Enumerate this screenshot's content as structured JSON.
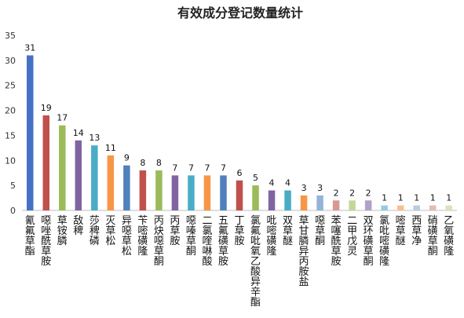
{
  "chart_data": {
    "type": "bar",
    "title": "有效成分登记数量统计",
    "xlabel": "",
    "ylabel": "",
    "ylim": [
      0,
      35
    ],
    "yticks": [
      0,
      5,
      10,
      15,
      20,
      25,
      30,
      35
    ],
    "grid": false,
    "legend": "none",
    "categories": [
      "氰氟草酯",
      "噁唑酰草胺",
      "草铵膦",
      "敌稗",
      "莎稗磷",
      "灭草松",
      "异噁草松",
      "苄嘧磺隆",
      "丙炔噁草酮",
      "丙草胺",
      "噁嗪草酮",
      "二氯喹啉酸",
      "五氟磺草胺",
      "丁草胺",
      "氯氟吡氧乙酸异辛酯",
      "吡嘧磺隆",
      "双草醚",
      "草甘膦异丙胺盐",
      "噁草酮",
      "苯噻酰草胺",
      "二甲戊灵",
      "双环磺草酮",
      "氯吡嘧磺隆",
      "嘧草醚",
      "西草净",
      "硝磺草酮",
      "乙氧磺隆"
    ],
    "values": [
      31,
      19,
      17,
      14,
      13,
      11,
      9,
      8,
      8,
      7,
      7,
      7,
      7,
      6,
      5,
      4,
      4,
      3,
      3,
      2,
      2,
      2,
      1,
      1,
      1,
      1,
      1
    ],
    "colors": [
      "#4472c4",
      "#c0504d",
      "#9bbb59",
      "#8064a2",
      "#4bacc6",
      "#f79646",
      "#4f81bd",
      "#c0504d",
      "#9bbb59",
      "#8064a2",
      "#4bacc6",
      "#f79646",
      "#4f81bd",
      "#c0504d",
      "#9bbb59",
      "#8064a2",
      "#4bacc6",
      "#f79646",
      "#95b3d7",
      "#da9694",
      "#c4d79b",
      "#b1a0c7",
      "#92cddc",
      "#fabf8f",
      "#b8cce4",
      "#e6b9b8",
      "#d7e4bc"
    ]
  }
}
